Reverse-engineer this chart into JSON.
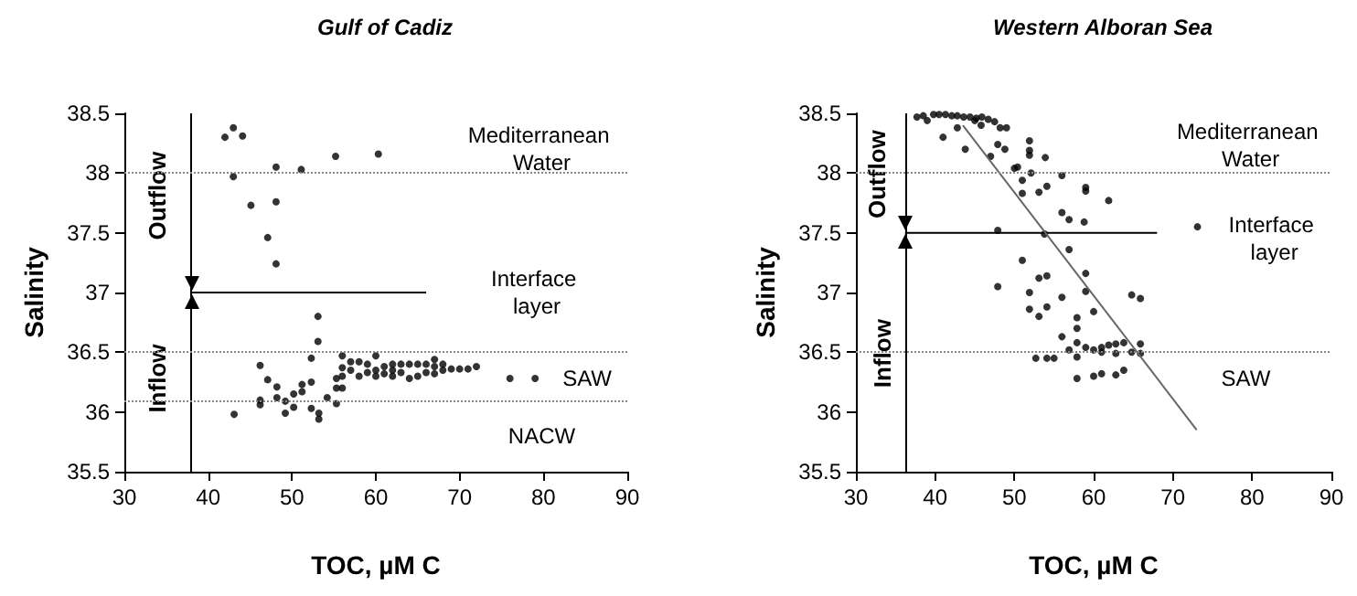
{
  "chart_data": [
    {
      "type": "scatter",
      "title": "Gulf of Cadiz",
      "xlabel": "TOC, µM C",
      "ylabel": "Salinity",
      "xlim": [
        30,
        90
      ],
      "ylim": [
        35.5,
        38.5
      ],
      "xticks": [
        30,
        40,
        50,
        60,
        70,
        80,
        90
      ],
      "yticks": [
        35.5,
        36,
        36.5,
        37,
        37.5,
        38,
        38.5
      ],
      "series": [
        {
          "marker": "circle",
          "color": "#000000",
          "x": [
            42,
            43,
            44.1,
            43,
            48.1,
            51.1,
            55.2,
            60.3,
            45.1,
            48.1,
            47.1,
            48.1,
            53.1,
            53.1,
            43.1,
            46.2,
            46.2,
            46.2,
            47.1,
            48.2,
            48.2,
            49.2,
            49.2,
            50.2,
            50.2,
            51.2,
            51.2,
            52.3,
            52.3,
            52.3,
            53.2,
            53.2,
            54.2,
            55.3,
            55.3,
            55.3,
            56,
            56,
            56,
            56,
            57,
            57,
            58,
            58,
            59,
            59,
            60,
            60,
            60,
            61,
            61,
            62,
            62,
            62,
            63,
            63,
            64,
            64,
            65,
            65,
            66,
            66,
            67,
            67,
            67,
            68,
            68,
            69,
            70,
            71,
            72,
            76,
            79
          ],
          "values": [
            38.3,
            38.38,
            38.31,
            37.97,
            38.05,
            38.03,
            38.14,
            38.16,
            37.73,
            37.76,
            37.46,
            37.24,
            36.8,
            36.59,
            35.98,
            36.39,
            36.1,
            36.06,
            36.27,
            36.21,
            36.12,
            36.09,
            35.99,
            36.04,
            36.15,
            36.17,
            36.23,
            36.45,
            36.25,
            36.03,
            35.99,
            35.94,
            36.12,
            36.07,
            36.2,
            36.28,
            36.2,
            36.3,
            36.37,
            36.47,
            36.35,
            36.42,
            36.3,
            36.42,
            36.33,
            36.4,
            36.3,
            36.35,
            36.47,
            36.32,
            36.38,
            36.3,
            36.35,
            36.4,
            36.33,
            36.4,
            36.28,
            36.4,
            36.3,
            36.4,
            36.33,
            36.4,
            36.32,
            36.38,
            36.44,
            36.4,
            36.35,
            36.36,
            36.36,
            36.36,
            36.38,
            36.28,
            36.28
          ]
        },
        {
          "type": "line",
          "marker": "none",
          "color": "#000000",
          "x": [
            38,
            66
          ],
          "values": [
            37,
            37
          ]
        }
      ],
      "ref_lines": [
        {
          "axis": "x",
          "value": 38,
          "color": "#000000",
          "line_style": "solid"
        },
        {
          "axis": "y",
          "value": 38,
          "color": "#888888",
          "line_style": "dotted"
        },
        {
          "axis": "y",
          "value": 36.5,
          "color": "#888888",
          "line_style": "dotted"
        },
        {
          "axis": "y",
          "value": 36.1,
          "color": "#888888",
          "line_style": "dotted"
        }
      ],
      "annotations": [
        "Mediterranean Water",
        "Interface layer",
        "SAW",
        "NACW",
        "Outflow",
        "Inflow"
      ]
    },
    {
      "type": "scatter",
      "title": "Western Alboran Sea",
      "xlabel": "TOC, µM C",
      "ylabel": "Salinity",
      "xlim": [
        30,
        90
      ],
      "ylim": [
        35.5,
        38.5
      ],
      "xticks": [
        30,
        40,
        50,
        60,
        70,
        80,
        90
      ],
      "yticks": [
        35.5,
        36,
        36.5,
        37,
        37.5,
        38,
        38.5
      ],
      "series": [
        {
          "marker": "circle",
          "color": "#000000",
          "x": [
            37.7,
            38.5,
            39,
            39.8,
            40.5,
            41.3,
            42.1,
            42.8,
            43.6,
            44.4,
            45.2,
            45.9,
            46.7,
            47.5,
            48.2,
            41,
            42.8,
            43.8,
            45,
            45.8,
            47,
            47.9,
            48.8,
            49,
            50,
            50.4,
            51,
            51.9,
            51.9,
            51.9,
            52.1,
            51,
            53.1,
            53.9,
            54.1,
            56,
            56,
            56.9,
            58.8,
            59,
            59,
            61.9,
            73.1,
            47.9,
            53.8,
            51,
            56.9,
            47.9,
            51.9,
            53.1,
            54.1,
            59,
            59,
            51.9,
            53.1,
            54.1,
            56,
            60,
            64.8,
            65.9,
            57.9,
            57.9,
            56,
            57.9,
            56.9,
            59,
            60,
            61,
            61.9,
            62.8,
            63.8,
            61,
            62.8,
            64.8,
            65.9,
            65.9,
            52.7,
            54.1,
            55,
            57.9,
            57.9,
            60,
            61,
            62.8,
            63.8
          ],
          "values": [
            38.47,
            38.48,
            38.44,
            38.49,
            38.49,
            38.49,
            38.48,
            38.48,
            38.47,
            38.47,
            38.46,
            38.47,
            38.45,
            38.43,
            38.38,
            38.3,
            38.38,
            38.2,
            38.44,
            38.4,
            38.14,
            38.24,
            38.2,
            38.38,
            38.04,
            38.05,
            37.94,
            38.27,
            38.19,
            38.15,
            38.0,
            37.83,
            37.84,
            38.13,
            37.89,
            37.98,
            37.67,
            37.61,
            37.59,
            37.88,
            37.85,
            37.77,
            37.55,
            37.52,
            37.49,
            37.27,
            37.36,
            37.05,
            37.0,
            37.12,
            37.14,
            37.16,
            37.01,
            36.86,
            36.8,
            36.88,
            36.96,
            36.84,
            36.98,
            36.95,
            36.79,
            36.7,
            36.63,
            36.58,
            36.52,
            36.54,
            36.52,
            36.54,
            36.56,
            36.57,
            36.58,
            36.5,
            36.49,
            36.5,
            36.49,
            36.57,
            36.45,
            36.45,
            36.45,
            36.46,
            36.28,
            36.3,
            36.32,
            36.31,
            36.35
          ]
        },
        {
          "type": "line",
          "marker": "none",
          "color": "#000000",
          "x": [
            36.2,
            68
          ],
          "values": [
            37.5,
            37.5
          ]
        },
        {
          "type": "line",
          "marker": "none",
          "color": "#666666",
          "x": [
            43.5,
            73
          ],
          "values": [
            38.4,
            35.85
          ]
        }
      ],
      "ref_lines": [
        {
          "axis": "x",
          "value": 36.2,
          "color": "#000000",
          "line_style": "solid"
        },
        {
          "axis": "y",
          "value": 38,
          "color": "#888888",
          "line_style": "dotted"
        },
        {
          "axis": "y",
          "value": 36.5,
          "color": "#888888",
          "line_style": "dotted"
        }
      ],
      "annotations": [
        "Mediterranean Water",
        "Interface layer",
        "SAW",
        "Outflow",
        "Inflow"
      ]
    }
  ]
}
